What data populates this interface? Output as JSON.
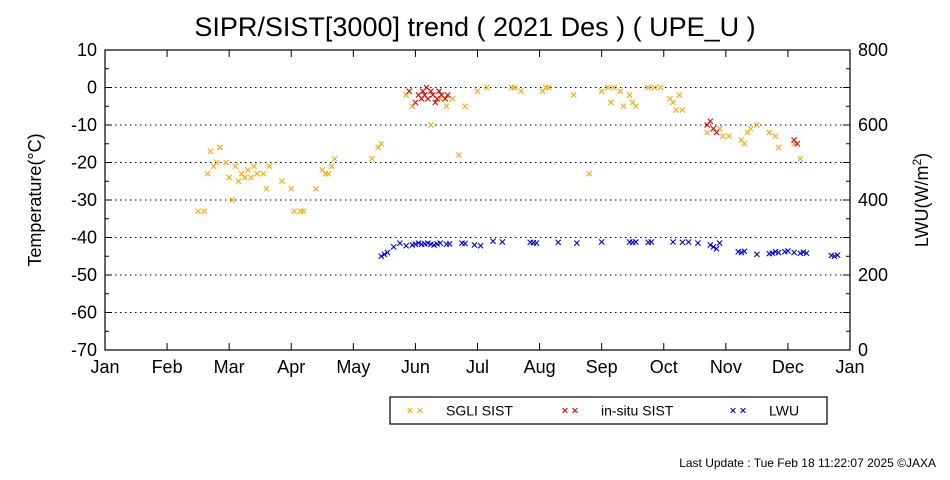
{
  "chart_data": {
    "type": "scatter",
    "title": "SIPR/SIST[3000] trend ( 2021 Des ) ( UPE_U )",
    "ylabel": "Temperature(°C)",
    "y2label_main": "LWU(W/m",
    "y2label_sup": "2",
    "y2label_end": ")",
    "ylim": [
      -70,
      10
    ],
    "y2lim": [
      0,
      800
    ],
    "yticks": [
      "10",
      "0",
      "-10",
      "-20",
      "-30",
      "-40",
      "-50",
      "-60",
      "-70"
    ],
    "y2ticks": [
      "800",
      "600",
      "400",
      "200",
      "0"
    ],
    "months": [
      "Jan",
      "Feb",
      "Mar",
      "Apr",
      "May",
      "Jun",
      "Jul",
      "Aug",
      "Sep",
      "Oct",
      "Nov",
      "Dec",
      "Jan"
    ],
    "grid": "dotted horizontal",
    "legend_position": "bottom-center",
    "series": [
      {
        "name": "SGLI SIST",
        "color": "#ffa500",
        "marker": "x",
        "points": [
          [
            2.5,
            -33
          ],
          [
            2.6,
            -33
          ],
          [
            2.65,
            -23
          ],
          [
            2.7,
            -17
          ],
          [
            2.75,
            -21
          ],
          [
            2.8,
            -20
          ],
          [
            2.85,
            -16
          ],
          [
            2.95,
            -20
          ],
          [
            3.0,
            -24
          ],
          [
            3.05,
            -30
          ],
          [
            3.1,
            -21
          ],
          [
            3.15,
            -25
          ],
          [
            3.2,
            -23
          ],
          [
            3.25,
            -24
          ],
          [
            3.3,
            -22
          ],
          [
            3.35,
            -24
          ],
          [
            3.4,
            -21
          ],
          [
            3.45,
            -23
          ],
          [
            3.55,
            -23
          ],
          [
            3.6,
            -27
          ],
          [
            3.65,
            -21
          ],
          [
            3.85,
            -25
          ],
          [
            4.0,
            -27
          ],
          [
            4.05,
            -33
          ],
          [
            4.15,
            -33
          ],
          [
            4.2,
            -33
          ],
          [
            4.4,
            -27
          ],
          [
            4.5,
            -22
          ],
          [
            4.55,
            -23
          ],
          [
            4.6,
            -23
          ],
          [
            4.65,
            -21
          ],
          [
            4.7,
            -19
          ],
          [
            5.3,
            -19
          ],
          [
            5.4,
            -16
          ],
          [
            5.45,
            -15
          ],
          [
            5.85,
            -2
          ],
          [
            5.95,
            -5
          ],
          [
            6.25,
            -10
          ],
          [
            6.4,
            -3
          ],
          [
            6.5,
            -5
          ],
          [
            6.6,
            -3
          ],
          [
            6.7,
            -18
          ],
          [
            6.8,
            -5
          ],
          [
            7.0,
            -1
          ],
          [
            7.15,
            0
          ],
          [
            7.55,
            0
          ],
          [
            7.6,
            0
          ],
          [
            7.7,
            -1
          ],
          [
            8.05,
            -1
          ],
          [
            8.1,
            0
          ],
          [
            8.15,
            0
          ],
          [
            8.55,
            -2
          ],
          [
            8.8,
            -23
          ],
          [
            9.0,
            -1
          ],
          [
            9.1,
            0
          ],
          [
            9.15,
            -4
          ],
          [
            9.2,
            0
          ],
          [
            9.3,
            -1
          ],
          [
            9.35,
            -5
          ],
          [
            9.45,
            -2
          ],
          [
            9.5,
            -4
          ],
          [
            9.55,
            -5
          ],
          [
            9.75,
            0
          ],
          [
            9.85,
            0
          ],
          [
            9.95,
            0
          ],
          [
            10.1,
            -3
          ],
          [
            10.15,
            -4
          ],
          [
            10.2,
            -6
          ],
          [
            10.25,
            -2
          ],
          [
            10.3,
            -6
          ],
          [
            10.7,
            -12
          ],
          [
            10.9,
            -11
          ],
          [
            10.95,
            -13
          ],
          [
            11.05,
            -13
          ],
          [
            11.25,
            -14
          ],
          [
            11.3,
            -15
          ],
          [
            11.35,
            -12
          ],
          [
            11.4,
            -11
          ],
          [
            11.5,
            -10
          ],
          [
            11.7,
            -12
          ],
          [
            11.8,
            -13
          ],
          [
            11.85,
            -16
          ],
          [
            12.1,
            -15
          ],
          [
            12.2,
            -19
          ]
        ]
      },
      {
        "name": "in-situ SIST",
        "color": "#e00000",
        "marker": "x",
        "points": [
          [
            5.9,
            -1
          ],
          [
            6.0,
            -4
          ],
          [
            6.05,
            -2
          ],
          [
            6.1,
            -3
          ],
          [
            6.12,
            -1
          ],
          [
            6.15,
            -2
          ],
          [
            6.18,
            0
          ],
          [
            6.2,
            -3
          ],
          [
            6.25,
            -1
          ],
          [
            6.28,
            -2
          ],
          [
            6.32,
            -4
          ],
          [
            6.35,
            -3
          ],
          [
            6.38,
            -1
          ],
          [
            6.42,
            -2
          ],
          [
            6.48,
            -3
          ],
          [
            6.52,
            -2
          ],
          [
            10.7,
            -10
          ],
          [
            10.75,
            -9
          ],
          [
            10.8,
            -11
          ],
          [
            10.85,
            -12
          ],
          [
            12.1,
            -14
          ],
          [
            12.15,
            -15
          ]
        ]
      },
      {
        "name": "LWU",
        "color": "#0000e0",
        "marker": "x",
        "points": [
          [
            5.45,
            250
          ],
          [
            5.5,
            255
          ],
          [
            5.55,
            260
          ],
          [
            5.65,
            275
          ],
          [
            5.75,
            285
          ],
          [
            5.85,
            278
          ],
          [
            5.95,
            280
          ],
          [
            6.0,
            282
          ],
          [
            6.05,
            285
          ],
          [
            6.1,
            282
          ],
          [
            6.15,
            283
          ],
          [
            6.2,
            285
          ],
          [
            6.25,
            282
          ],
          [
            6.3,
            280
          ],
          [
            6.35,
            283
          ],
          [
            6.4,
            285
          ],
          [
            6.5,
            282
          ],
          [
            6.55,
            283
          ],
          [
            6.75,
            285
          ],
          [
            6.8,
            284
          ],
          [
            6.95,
            280
          ],
          [
            7.05,
            278
          ],
          [
            7.25,
            290
          ],
          [
            7.4,
            288
          ],
          [
            7.85,
            287
          ],
          [
            7.9,
            286
          ],
          [
            7.95,
            285
          ],
          [
            8.3,
            287
          ],
          [
            8.6,
            285
          ],
          [
            9.0,
            288
          ],
          [
            9.45,
            288
          ],
          [
            9.5,
            287
          ],
          [
            9.55,
            288
          ],
          [
            9.75,
            287
          ],
          [
            9.8,
            288
          ],
          [
            10.15,
            288
          ],
          [
            10.3,
            287
          ],
          [
            10.4,
            288
          ],
          [
            10.55,
            285
          ],
          [
            10.75,
            280
          ],
          [
            10.8,
            275
          ],
          [
            10.85,
            270
          ],
          [
            10.9,
            285
          ],
          [
            11.2,
            262
          ],
          [
            11.25,
            260
          ],
          [
            11.3,
            263
          ],
          [
            11.5,
            255
          ],
          [
            11.7,
            257
          ],
          [
            11.75,
            258
          ],
          [
            11.8,
            262
          ],
          [
            11.85,
            260
          ],
          [
            11.95,
            262
          ],
          [
            12.0,
            264
          ],
          [
            12.1,
            260
          ],
          [
            12.2,
            258
          ],
          [
            12.25,
            261
          ],
          [
            12.3,
            258
          ],
          [
            12.7,
            252
          ],
          [
            12.75,
            250
          ],
          [
            12.8,
            253
          ]
        ]
      }
    ]
  },
  "footer": "Last Update : Tue Feb 18 11:22:07 2025  ©JAXA"
}
